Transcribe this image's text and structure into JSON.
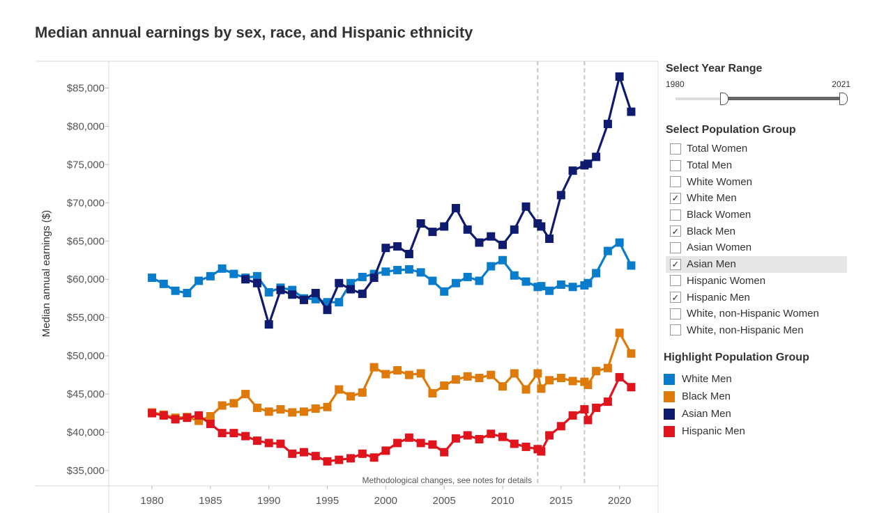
{
  "title": "Median annual earnings by sex, race, and Hispanic ethnicity",
  "year_range": {
    "heading": "Select Year Range",
    "min_label": "1980",
    "max_label": "2021"
  },
  "population": {
    "heading": "Select Population Group",
    "items": [
      {
        "label": "Total Women",
        "checked": false,
        "highlighted": false
      },
      {
        "label": "Total Men",
        "checked": false,
        "highlighted": false
      },
      {
        "label": "White Women",
        "checked": false,
        "highlighted": false
      },
      {
        "label": "White Men",
        "checked": true,
        "highlighted": false
      },
      {
        "label": "Black Women",
        "checked": false,
        "highlighted": false
      },
      {
        "label": "Black Men",
        "checked": true,
        "highlighted": false
      },
      {
        "label": "Asian Women",
        "checked": false,
        "highlighted": false
      },
      {
        "label": "Asian Men",
        "checked": true,
        "highlighted": true
      },
      {
        "label": "Hispanic Women",
        "checked": false,
        "highlighted": false
      },
      {
        "label": "Hispanic Men",
        "checked": true,
        "highlighted": false
      },
      {
        "label": "White, non-Hispanic Women",
        "checked": false,
        "highlighted": false
      },
      {
        "label": "White, non-Hispanic Men",
        "checked": false,
        "highlighted": false
      }
    ]
  },
  "highlight": {
    "heading": "Highlight Population Group",
    "items": [
      {
        "label": "White Men",
        "color": "#0a7ccc"
      },
      {
        "label": "Black Men",
        "color": "#dd7a0a"
      },
      {
        "label": "Asian Men",
        "color": "#0e1b6e"
      },
      {
        "label": "Hispanic Men",
        "color": "#e0141c"
      }
    ]
  },
  "chart_data": {
    "type": "line",
    "title": "Median annual earnings by sex, race, and Hispanic ethnicity",
    "ylabel": "Median annual earnings ($)",
    "xlabel": "",
    "xlim": [
      1976.3,
      2023.3
    ],
    "ylim": [
      33000,
      88500
    ],
    "xticks": [
      1980,
      1985,
      1990,
      1995,
      2000,
      2005,
      2010,
      2015,
      2020
    ],
    "yticks": [
      35000,
      40000,
      45000,
      50000,
      55000,
      60000,
      65000,
      70000,
      75000,
      80000,
      85000
    ],
    "ytick_labels": [
      "$35,000",
      "$40,000",
      "$45,000",
      "$50,000",
      "$55,000",
      "$60,000",
      "$65,000",
      "$70,000",
      "$75,000",
      "$80,000",
      "$85,000"
    ],
    "reference_lines": [
      2013,
      2017
    ],
    "annotation": "Methodological changes, see notes for details",
    "series": [
      {
        "name": "White Men",
        "color": "#0a7ccc",
        "points": [
          [
            1980,
            60200
          ],
          [
            1981,
            59400
          ],
          [
            1982,
            58500
          ],
          [
            1983,
            58200
          ],
          [
            1984,
            59800
          ],
          [
            1985,
            60400
          ],
          [
            1986,
            61400
          ],
          [
            1987,
            60700
          ],
          [
            1988,
            60200
          ],
          [
            1989,
            60400
          ],
          [
            1990,
            58300
          ],
          [
            1991,
            58900
          ],
          [
            1992,
            58600
          ],
          [
            1993,
            57500
          ],
          [
            1994,
            57400
          ],
          [
            1995,
            57000
          ],
          [
            1996,
            57000
          ],
          [
            1997,
            59500
          ],
          [
            1998,
            60300
          ],
          [
            1999,
            60700
          ],
          [
            2000,
            61000
          ],
          [
            2001,
            61200
          ],
          [
            2002,
            61300
          ],
          [
            2003,
            60900
          ],
          [
            2004,
            59800
          ],
          [
            2005,
            58400
          ],
          [
            2006,
            59500
          ],
          [
            2007,
            60300
          ],
          [
            2008,
            59800
          ],
          [
            2009,
            61700
          ],
          [
            2010,
            62500
          ],
          [
            2011,
            60500
          ],
          [
            2012,
            59700
          ],
          [
            2013,
            59000
          ],
          [
            2013.3,
            59100
          ],
          [
            2014,
            58500
          ],
          [
            2015,
            59300
          ],
          [
            2016,
            59000
          ],
          [
            2017,
            59200
          ],
          [
            2017.3,
            59500
          ],
          [
            2018,
            60800
          ],
          [
            2019,
            63700
          ],
          [
            2020,
            64800
          ],
          [
            2021,
            61800
          ]
        ]
      },
      {
        "name": "Black Men",
        "color": "#dd7a0a",
        "points": [
          [
            1980,
            42600
          ],
          [
            1981,
            42300
          ],
          [
            1982,
            41900
          ],
          [
            1983,
            42000
          ],
          [
            1984,
            41500
          ],
          [
            1985,
            42100
          ],
          [
            1986,
            43500
          ],
          [
            1987,
            43800
          ],
          [
            1988,
            45000
          ],
          [
            1989,
            43200
          ],
          [
            1990,
            42700
          ],
          [
            1991,
            43000
          ],
          [
            1992,
            42600
          ],
          [
            1993,
            42700
          ],
          [
            1994,
            43100
          ],
          [
            1995,
            43300
          ],
          [
            1996,
            45600
          ],
          [
            1997,
            44700
          ],
          [
            1998,
            45200
          ],
          [
            1999,
            48500
          ],
          [
            2000,
            47600
          ],
          [
            2001,
            48100
          ],
          [
            2002,
            47500
          ],
          [
            2003,
            47700
          ],
          [
            2004,
            45100
          ],
          [
            2005,
            46100
          ],
          [
            2006,
            46900
          ],
          [
            2007,
            47300
          ],
          [
            2008,
            47100
          ],
          [
            2009,
            47500
          ],
          [
            2010,
            46000
          ],
          [
            2011,
            47700
          ],
          [
            2012,
            45600
          ],
          [
            2013,
            47700
          ],
          [
            2013.3,
            45700
          ],
          [
            2014,
            46800
          ],
          [
            2015,
            47100
          ],
          [
            2016,
            46700
          ],
          [
            2017,
            46600
          ],
          [
            2017.3,
            46200
          ],
          [
            2018,
            48000
          ],
          [
            2019,
            48400
          ],
          [
            2020,
            53000
          ],
          [
            2021,
            50300
          ]
        ]
      },
      {
        "name": "Asian Men",
        "color": "#0e1b6e",
        "points": [
          [
            1988,
            60000
          ],
          [
            1989,
            59500
          ],
          [
            1990,
            54100
          ],
          [
            1991,
            58600
          ],
          [
            1992,
            58000
          ],
          [
            1993,
            57300
          ],
          [
            1994,
            58200
          ],
          [
            1995,
            56000
          ],
          [
            1996,
            59500
          ],
          [
            1997,
            58700
          ],
          [
            1998,
            58100
          ],
          [
            1999,
            60200
          ],
          [
            2000,
            64100
          ],
          [
            2001,
            64300
          ],
          [
            2002,
            63300
          ],
          [
            2003,
            67300
          ],
          [
            2004,
            66200
          ],
          [
            2005,
            66900
          ],
          [
            2006,
            69300
          ],
          [
            2007,
            66500
          ],
          [
            2008,
            64800
          ],
          [
            2009,
            65600
          ],
          [
            2010,
            64500
          ],
          [
            2011,
            66500
          ],
          [
            2012,
            69500
          ],
          [
            2013,
            67300
          ],
          [
            2013.3,
            66900
          ],
          [
            2014,
            65300
          ],
          [
            2015,
            71000
          ],
          [
            2016,
            74200
          ],
          [
            2017,
            74900
          ],
          [
            2017.3,
            75100
          ],
          [
            2018,
            76000
          ],
          [
            2019,
            80300
          ],
          [
            2020,
            86500
          ],
          [
            2021,
            81900
          ]
        ]
      },
      {
        "name": "Hispanic Men",
        "color": "#e0141c",
        "points": [
          [
            1980,
            42500
          ],
          [
            1981,
            42200
          ],
          [
            1982,
            41700
          ],
          [
            1983,
            41900
          ],
          [
            1984,
            42200
          ],
          [
            1985,
            41100
          ],
          [
            1986,
            39900
          ],
          [
            1987,
            39900
          ],
          [
            1988,
            39500
          ],
          [
            1989,
            38900
          ],
          [
            1990,
            38600
          ],
          [
            1991,
            38500
          ],
          [
            1992,
            37200
          ],
          [
            1993,
            37400
          ],
          [
            1994,
            36900
          ],
          [
            1995,
            36200
          ],
          [
            1996,
            36400
          ],
          [
            1997,
            36600
          ],
          [
            1998,
            37200
          ],
          [
            1999,
            36700
          ],
          [
            2000,
            37600
          ],
          [
            2001,
            38600
          ],
          [
            2002,
            39300
          ],
          [
            2003,
            38600
          ],
          [
            2004,
            38400
          ],
          [
            2005,
            37400
          ],
          [
            2006,
            39200
          ],
          [
            2007,
            39600
          ],
          [
            2008,
            39100
          ],
          [
            2009,
            39800
          ],
          [
            2010,
            39400
          ],
          [
            2011,
            38500
          ],
          [
            2012,
            38100
          ],
          [
            2013,
            37800
          ],
          [
            2013.3,
            37500
          ],
          [
            2014,
            39600
          ],
          [
            2015,
            40800
          ],
          [
            2016,
            42200
          ],
          [
            2017,
            43000
          ],
          [
            2017.3,
            41600
          ],
          [
            2018,
            43200
          ],
          [
            2019,
            44000
          ],
          [
            2020,
            47200
          ],
          [
            2021,
            45900
          ]
        ]
      }
    ]
  }
}
